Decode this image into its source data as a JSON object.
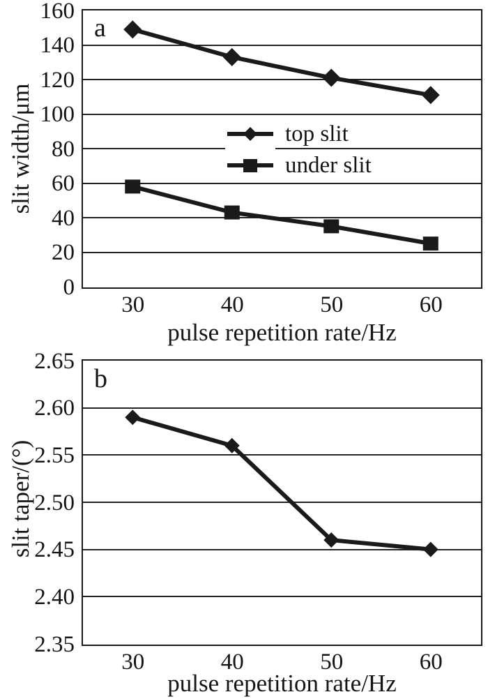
{
  "figure": {
    "background": "#ffffff",
    "ink_color": "#1a1a1a"
  },
  "chart_data": [
    {
      "id": "a",
      "type": "line",
      "panel_label": "a",
      "title": "",
      "xlabel": "pulse repetition rate/Hz",
      "ylabel": "slit width/μm",
      "x": [
        30,
        40,
        50,
        60
      ],
      "x_tick_labels": [
        "30",
        "40",
        "50",
        "60"
      ],
      "y_tick_labels": [
        "160",
        "140",
        "120",
        "100",
        "80",
        "60",
        "40",
        "20",
        "0"
      ],
      "ylim": [
        0,
        160
      ],
      "grid": "horizontal",
      "legend_position": "inside-center-left",
      "series": [
        {
          "name": "top slit",
          "marker": "diamond",
          "values": [
            149,
            133,
            121,
            111
          ]
        },
        {
          "name": "under slit",
          "marker": "square",
          "values": [
            58,
            43,
            35,
            25
          ]
        }
      ]
    },
    {
      "id": "b",
      "type": "line",
      "panel_label": "b",
      "title": "",
      "xlabel": "pulse repetition rate/Hz",
      "ylabel": "slit taper/(°)",
      "x": [
        30,
        40,
        50,
        60
      ],
      "x_tick_labels": [
        "30",
        "40",
        "50",
        "60"
      ],
      "y_tick_labels": [
        "2.65",
        "2.60",
        "2.55",
        "2.50",
        "2.45",
        "2.40",
        "2.35"
      ],
      "ylim": [
        2.35,
        2.65
      ],
      "grid": "horizontal",
      "legend_position": "none",
      "series": [
        {
          "name": "slit taper",
          "marker": "diamond",
          "values": [
            2.59,
            2.56,
            2.46,
            2.45
          ]
        }
      ]
    }
  ]
}
